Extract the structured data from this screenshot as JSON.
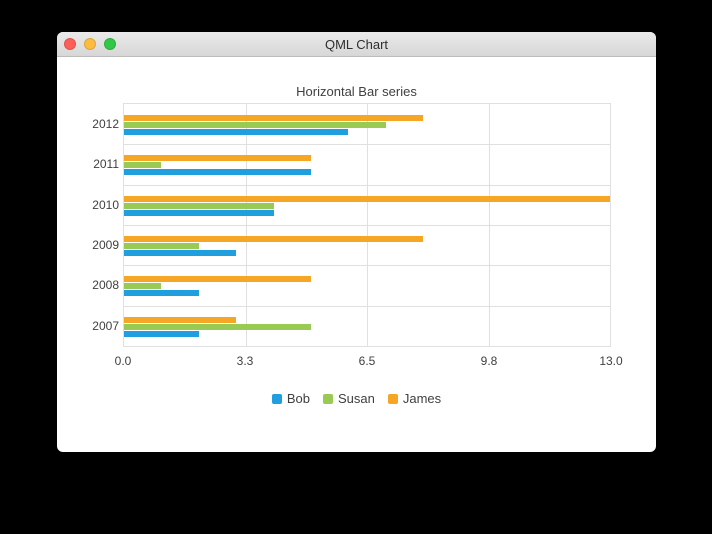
{
  "window": {
    "title": "QML Chart",
    "controls": {
      "close_color": "#fc5f57",
      "minimize_color": "#fdbc40",
      "zoom_color": "#33c748"
    }
  },
  "chart_data": {
    "type": "bar",
    "orientation": "horizontal",
    "title": "Horizontal Bar series",
    "categories": [
      "2007",
      "2008",
      "2009",
      "2010",
      "2011",
      "2012"
    ],
    "categories_display_top_to_bottom": [
      "2012",
      "2011",
      "2010",
      "2009",
      "2008",
      "2007"
    ],
    "series": [
      {
        "name": "Bob",
        "color": "#209fdf",
        "values": [
          2,
          2,
          3,
          4,
          5,
          6
        ]
      },
      {
        "name": "Susan",
        "color": "#99ca53",
        "values": [
          5,
          1,
          2,
          4,
          1,
          7
        ]
      },
      {
        "name": "James",
        "color": "#f6a625",
        "values": [
          3,
          5,
          8,
          13,
          5,
          8
        ]
      }
    ],
    "xlabel": "",
    "ylabel": "",
    "xlim": [
      0,
      13
    ],
    "x_ticks": [
      "0.0",
      "3.3",
      "6.5",
      "9.8",
      "13.0"
    ],
    "grid": true,
    "legend": {
      "position": "bottom",
      "entries": [
        "Bob",
        "Susan",
        "James"
      ]
    },
    "text_color": "#404040",
    "grid_color": "#e0e0e0"
  }
}
